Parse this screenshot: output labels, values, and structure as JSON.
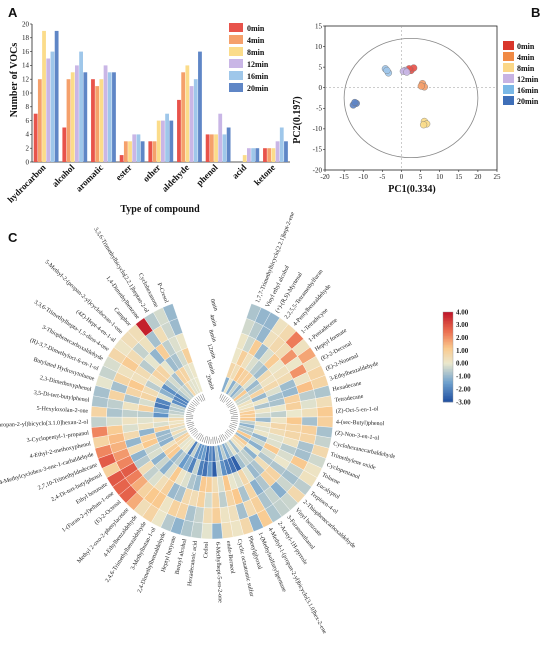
{
  "panels": {
    "a": "A",
    "b": "B",
    "c": "C"
  },
  "legend": [
    "0min",
    "4min",
    "8min",
    "12min",
    "16min",
    "20min"
  ],
  "colors": [
    "#e8534b",
    "#f5a06b",
    "#fbdc8a",
    "#c9b6e6",
    "#9fc7ea",
    "#5f86c6"
  ],
  "chart_data": [
    {
      "type": "bar",
      "xlabel": "Type of compound",
      "ylabel": "Number of VOCs",
      "ylim": [
        0,
        20
      ],
      "yticks": [
        0,
        2,
        4,
        6,
        8,
        10,
        12,
        14,
        16,
        18,
        20
      ],
      "categories": [
        "hydrocarbon",
        "alcohol",
        "aromatic",
        "ester",
        "other",
        "aldehyde",
        "phenol",
        "acid",
        "ketone"
      ],
      "series": [
        {
          "name": "0min",
          "values": [
            7,
            5,
            12,
            1,
            3,
            9,
            4,
            0,
            2
          ]
        },
        {
          "name": "4min",
          "values": [
            12,
            12,
            11,
            3,
            3,
            13,
            4,
            0,
            2
          ]
        },
        {
          "name": "8min",
          "values": [
            19,
            13,
            12,
            3,
            6,
            14,
            4,
            1,
            2
          ]
        },
        {
          "name": "12min",
          "values": [
            15,
            14,
            14,
            4,
            6,
            11,
            7,
            2,
            3
          ]
        },
        {
          "name": "16min",
          "values": [
            16,
            16,
            13,
            4,
            7,
            12,
            4,
            2,
            5
          ]
        },
        {
          "name": "20min",
          "values": [
            19,
            13,
            13,
            3,
            6,
            16,
            5,
            2,
            3
          ]
        }
      ]
    },
    {
      "type": "scatter",
      "xlabel": "PC1(0.334)",
      "ylabel": "PC2(0.197)",
      "xlim": [
        -20,
        25
      ],
      "ylim": [
        -20,
        15
      ],
      "xticks": [
        -20,
        -15,
        -10,
        -5,
        0,
        5,
        10,
        15,
        20,
        25
      ],
      "yticks": [
        -20,
        -15,
        -10,
        -5,
        0,
        5,
        10,
        15
      ],
      "series": [
        {
          "name": "0min",
          "points": [
            [
              2.5,
              4.2
            ],
            [
              3.2,
              4.8
            ],
            [
              2.0,
              4.6
            ]
          ]
        },
        {
          "name": "4min",
          "points": [
            [
              5.5,
              1.0
            ],
            [
              6.0,
              0.2
            ],
            [
              5.2,
              0.4
            ]
          ]
        },
        {
          "name": "8min",
          "points": [
            [
              6.0,
              -8.2
            ],
            [
              6.6,
              -8.8
            ],
            [
              5.8,
              -9.0
            ]
          ]
        },
        {
          "name": "12min",
          "points": [
            [
              1.0,
              4.2
            ],
            [
              0.5,
              4.0
            ],
            [
              1.4,
              3.8
            ]
          ]
        },
        {
          "name": "16min",
          "points": [
            [
              -4.2,
              4.6
            ],
            [
              -3.4,
              3.6
            ],
            [
              -3.8,
              4.2
            ]
          ]
        },
        {
          "name": "20min",
          "points": [
            [
              -11.8,
              -3.8
            ],
            [
              -12.6,
              -4.2
            ],
            [
              -12.2,
              -3.6
            ]
          ]
        }
      ]
    },
    {
      "type": "heatmap",
      "scale": [
        -3.0,
        4.0
      ],
      "scale_ticks": [
        "4.00",
        "3.00",
        "2.00",
        "1.00",
        "0.00",
        "-1.00",
        "-2.00",
        "-3.00"
      ],
      "column_labels": [
        "20min",
        "16min",
        "12min",
        "8min",
        "4min",
        "0min"
      ],
      "row_labels": [
        "1,7,7-Trimethylbicyclo[2.2.1]hept-2-ene",
        "Vinyl ethyl alcohol",
        "(+)-(R,S)-Myrtenal",
        "2,2,5,5-Tetramethylfuran",
        "4-Pentylbenzaldehyde",
        "1-Tetradecyne",
        "1-Pentadecene",
        "Heptyl formate",
        "(E)-2-Decenal",
        "(E)-2-Nonenal",
        "3-Ethylbenzaldehyde",
        "Hexadecane",
        "Tetradecane",
        "(Z)-Oct-5-en-1-ol",
        "4-(sec-Butyl)phenol",
        "(Z)-Non-3-en-1-ol",
        "Cyclohexanecarbaldehyde",
        "Trimethylene oxide",
        "Cyclopentanol",
        "Toluene",
        "Eucalyptol",
        "Terpinen-4-ol",
        "2-Thiophenecarboxaldehyde",
        "Vinyl benzoate",
        "3-Furanmethanol",
        "2-Acetyl-1H-pyrrole",
        "4-Methyl-1-(propan-2-yl)bicyclo[3.1.0]hex-2-ene",
        "1-(Methylsulfanyl)pentane",
        "Phenylglyoxal",
        "Cyclic octaatomic sulfur",
        "endo-Borneol",
        "6-Methylhept-5-en-2-one",
        "Cedrol",
        "Hexadecanoic acid",
        "Benzyl alcohol",
        "Heptyl butyrate",
        "2,4-Dimethylbenzaldehyde",
        "3-Methylbutan-1-ol",
        "2,4,6-Trimethylbenzaldehyde",
        "4-Ethylbenzaldehyde",
        "Methyl 2-oxo-2-phenylacetate",
        "(E)-2-Octenal",
        "1-(Furan-2-yl)ethan-1-one",
        "Ethyl benzoate",
        "2,4-Di-tert-butylphenol",
        "2,7,10-Trimethyldodecane",
        "4-Methylcyclohex-3-ene-1-carbaldehyde",
        "4-Ethyl-2-methoxyphenol",
        "3-Cyclopentyl-1-propanol",
        "(1S,2S,5R)-2-Methyl-5-(propan-2-yl)bicyclo[3.1.0]hexan-2-ol",
        "5-Hexyloxolan-2-one",
        "3,5-Di-tert-butylphenol",
        "2,3-Dimethoxyphenol",
        "Butylated Hydroxytoluene",
        "(R)-3,7-Dimethyloct-6-en-1-ol",
        "3-Thiophenecarboxaldehyde",
        "3,3,6-Trimethylhepta-1,5-dien-4-one",
        "(4Z)-Hept-4-en-1-al",
        "5-Methyl-2-(propan-2-yl)cyclohexan-1-one",
        "Camphor",
        "1,4-Dimethylbenzene",
        "3,3,6-Trimethylbicyclo[2.2.1]heptan-2-ol",
        "Cyclohexanone",
        "P-Cresol"
      ]
    }
  ]
}
